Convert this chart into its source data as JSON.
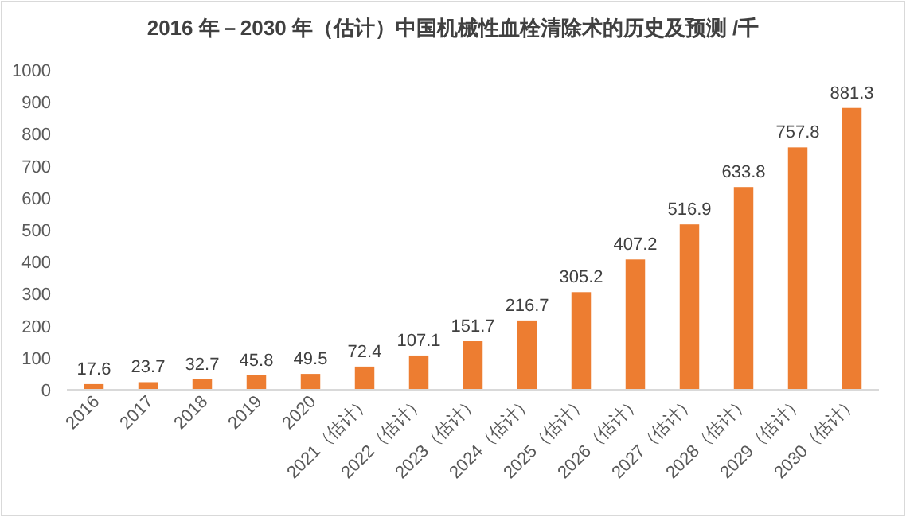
{
  "chart_data": {
    "type": "bar",
    "title": "2016 年－2030 年（估计）中国机械性血栓清除术的历史及预测  /千",
    "categories": [
      "2016",
      "2017",
      "2018",
      "2019",
      "2020",
      "2021（估计）",
      "2022（估计）",
      "2023（估计）",
      "2024（估计）",
      "2025（估计）",
      "2026（估计）",
      "2027（估计）",
      "2028（估计）",
      "2029（估计）",
      "2030（估计）"
    ],
    "values": [
      17.6,
      23.7,
      32.7,
      45.8,
      49.5,
      72.4,
      107.1,
      151.7,
      216.7,
      305.2,
      407.2,
      516.9,
      633.8,
      757.8,
      881.3
    ],
    "color": "#ed7d31",
    "ylim": [
      0,
      1000
    ],
    "yticks": [
      0,
      100,
      200,
      300,
      400,
      500,
      600,
      700,
      800,
      900,
      1000
    ],
    "grid": false,
    "data_labels": true
  }
}
